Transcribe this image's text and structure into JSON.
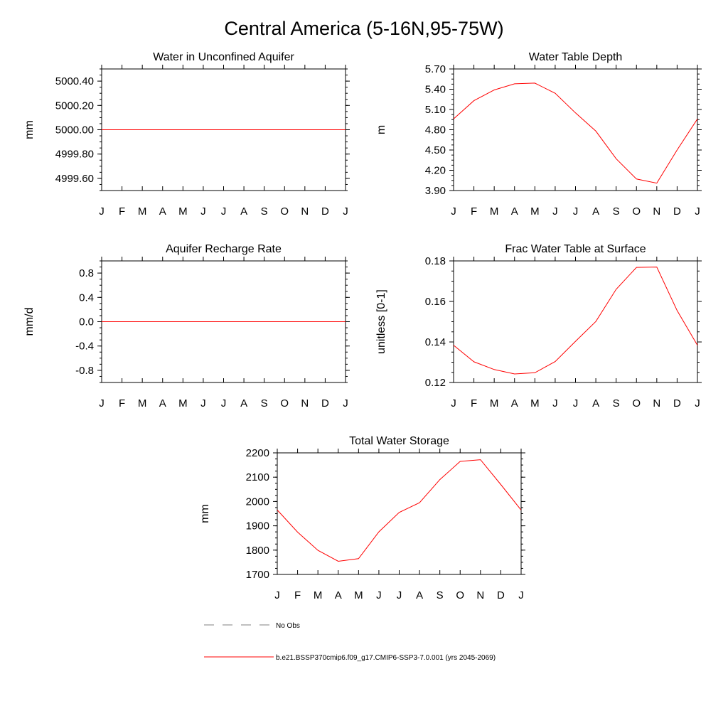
{
  "page_title": "Central America (5-16N,95-75W)",
  "colors": {
    "model_line": "#ff0000",
    "obs_line": "#808080",
    "axis": "#000000"
  },
  "legend": {
    "obs_label": "No Obs",
    "model_label": "b.e21.BSSP370cmip6.f09_g17.CMIP6-SSP3-7.0.001 (yrs 2045-2069)"
  },
  "chart_data": [
    {
      "type": "line",
      "title": "Water in Unconfined Aquifer",
      "ylabel": "mm",
      "xlabel": "",
      "categories": [
        "J",
        "F",
        "M",
        "A",
        "M",
        "J",
        "J",
        "A",
        "S",
        "O",
        "N",
        "D",
        "J"
      ],
      "ylim": [
        4999.5,
        5000.5
      ],
      "yticks": [
        4999.6,
        4999.8,
        5000.0,
        5000.2,
        5000.4
      ],
      "ytick_labels": [
        "4999.60",
        "4999.80",
        "5000.00",
        "5000.20",
        "5000.40"
      ],
      "series": [
        {
          "values": [
            5000,
            5000,
            5000,
            5000,
            5000,
            5000,
            5000,
            5000,
            5000,
            5000,
            5000,
            5000,
            5000
          ]
        }
      ]
    },
    {
      "type": "line",
      "title": "Water Table Depth",
      "ylabel": "m",
      "xlabel": "",
      "categories": [
        "J",
        "F",
        "M",
        "A",
        "M",
        "J",
        "J",
        "A",
        "S",
        "O",
        "N",
        "D",
        "J"
      ],
      "ylim": [
        3.9,
        5.7
      ],
      "yticks": [
        3.9,
        4.2,
        4.5,
        4.8,
        5.1,
        5.4,
        5.7
      ],
      "ytick_labels": [
        "3.90",
        "4.20",
        "4.50",
        "4.80",
        "5.10",
        "5.40",
        "5.70"
      ],
      "series": [
        {
          "values": [
            4.96,
            5.23,
            5.39,
            5.48,
            5.49,
            5.34,
            5.05,
            4.78,
            4.37,
            4.07,
            4.01,
            4.5,
            4.96
          ]
        }
      ]
    },
    {
      "type": "line",
      "title": "Aquifer Recharge Rate",
      "ylabel": "mm/d",
      "xlabel": "",
      "categories": [
        "J",
        "F",
        "M",
        "A",
        "M",
        "J",
        "J",
        "A",
        "S",
        "O",
        "N",
        "D",
        "J"
      ],
      "ylim": [
        -1.0,
        1.0
      ],
      "yticks": [
        -0.8,
        -0.4,
        0.0,
        0.4,
        0.8
      ],
      "ytick_labels": [
        "-0.8",
        "-0.4",
        "0.0",
        "0.4",
        "0.8"
      ],
      "series": [
        {
          "values": [
            0,
            0,
            0,
            0,
            0,
            0,
            0,
            0,
            0,
            0,
            0,
            0,
            0
          ]
        }
      ]
    },
    {
      "type": "line",
      "title": "Frac Water Table at Surface",
      "ylabel": "unitless [0-1]",
      "xlabel": "",
      "categories": [
        "J",
        "F",
        "M",
        "A",
        "M",
        "J",
        "J",
        "A",
        "S",
        "O",
        "N",
        "D",
        "J"
      ],
      "ylim": [
        0.12,
        0.18
      ],
      "yticks": [
        0.12,
        0.14,
        0.16,
        0.18
      ],
      "ytick_labels": [
        "0.12",
        "0.14",
        "0.16",
        "0.18"
      ],
      "series": [
        {
          "values": [
            0.1384,
            0.1302,
            0.1264,
            0.1242,
            0.1248,
            0.1303,
            0.1403,
            0.1501,
            0.166,
            0.1768,
            0.177,
            0.1555,
            0.1384
          ]
        }
      ]
    },
    {
      "type": "line",
      "title": "Total Water Storage",
      "ylabel": "mm",
      "xlabel": "",
      "categories": [
        "J",
        "F",
        "M",
        "A",
        "M",
        "J",
        "J",
        "A",
        "S",
        "O",
        "N",
        "D",
        "J"
      ],
      "ylim": [
        1700,
        2200
      ],
      "yticks": [
        1700,
        1800,
        1900,
        2000,
        2100,
        2200
      ],
      "ytick_labels": [
        "1700",
        "1800",
        "1900",
        "2000",
        "2100",
        "2200"
      ],
      "series": [
        {
          "values": [
            1965,
            1874,
            1799,
            1754,
            1765,
            1875,
            1955,
            1995,
            2090,
            2165,
            2172,
            2070,
            1965
          ]
        }
      ]
    }
  ]
}
